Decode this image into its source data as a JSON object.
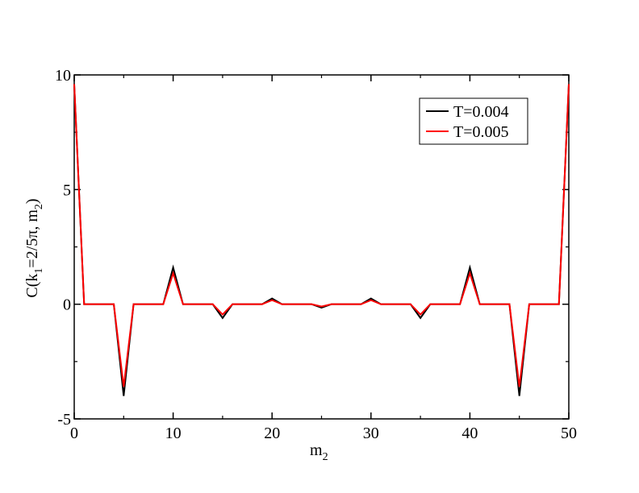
{
  "chart_data": {
    "type": "line",
    "xlabel": {
      "base": "m",
      "sub": "2"
    },
    "ylabel": {
      "pre": "C(k",
      "sub1": "1",
      "mid": "=2/5π, m",
      "sub2": "2",
      "post": ")"
    },
    "xlim": [
      0,
      50
    ],
    "ylim": [
      -5,
      10
    ],
    "xticks": [
      0,
      10,
      20,
      30,
      40,
      50
    ],
    "yticks": [
      -5,
      0,
      5,
      10
    ],
    "xtick_labels": [
      "0",
      "10",
      "20",
      "30",
      "40",
      "50"
    ],
    "ytick_labels": [
      "-5",
      "0",
      "5",
      "10"
    ],
    "grid": false,
    "legend_position": "top-right",
    "x": [
      0,
      1,
      2,
      3,
      4,
      5,
      6,
      7,
      8,
      9,
      10,
      11,
      12,
      13,
      14,
      15,
      16,
      17,
      18,
      19,
      20,
      21,
      22,
      23,
      24,
      25,
      26,
      27,
      28,
      29,
      30,
      31,
      32,
      33,
      34,
      35,
      36,
      37,
      38,
      39,
      40,
      41,
      42,
      43,
      44,
      45,
      46,
      47,
      48,
      49,
      50
    ],
    "series": [
      {
        "name": "T=0.004",
        "color": "#000000",
        "values": [
          9.6,
          0,
          0,
          0,
          0,
          -4.0,
          0,
          0,
          0,
          0,
          1.6,
          0,
          0,
          0,
          0,
          -0.6,
          0,
          0,
          0,
          0,
          0.25,
          0,
          0,
          0,
          0,
          -0.15,
          0,
          0,
          0,
          0,
          0.25,
          0,
          0,
          0,
          0,
          -0.6,
          0,
          0,
          0,
          0,
          1.6,
          0,
          0,
          0,
          0,
          -4.0,
          0,
          0,
          0,
          0,
          9.6
        ]
      },
      {
        "name": "T=0.005",
        "color": "#ff0000",
        "values": [
          9.6,
          0,
          0,
          0,
          0,
          -3.6,
          0,
          0,
          0,
          0,
          1.35,
          0,
          0,
          0,
          0,
          -0.45,
          0,
          0,
          0,
          0,
          0.18,
          0,
          0,
          0,
          0,
          -0.1,
          0,
          0,
          0,
          0,
          0.18,
          0,
          0,
          0,
          0,
          -0.45,
          0,
          0,
          0,
          0,
          1.35,
          0,
          0,
          0,
          0,
          -3.6,
          0,
          0,
          0,
          0,
          9.6
        ]
      }
    ]
  }
}
